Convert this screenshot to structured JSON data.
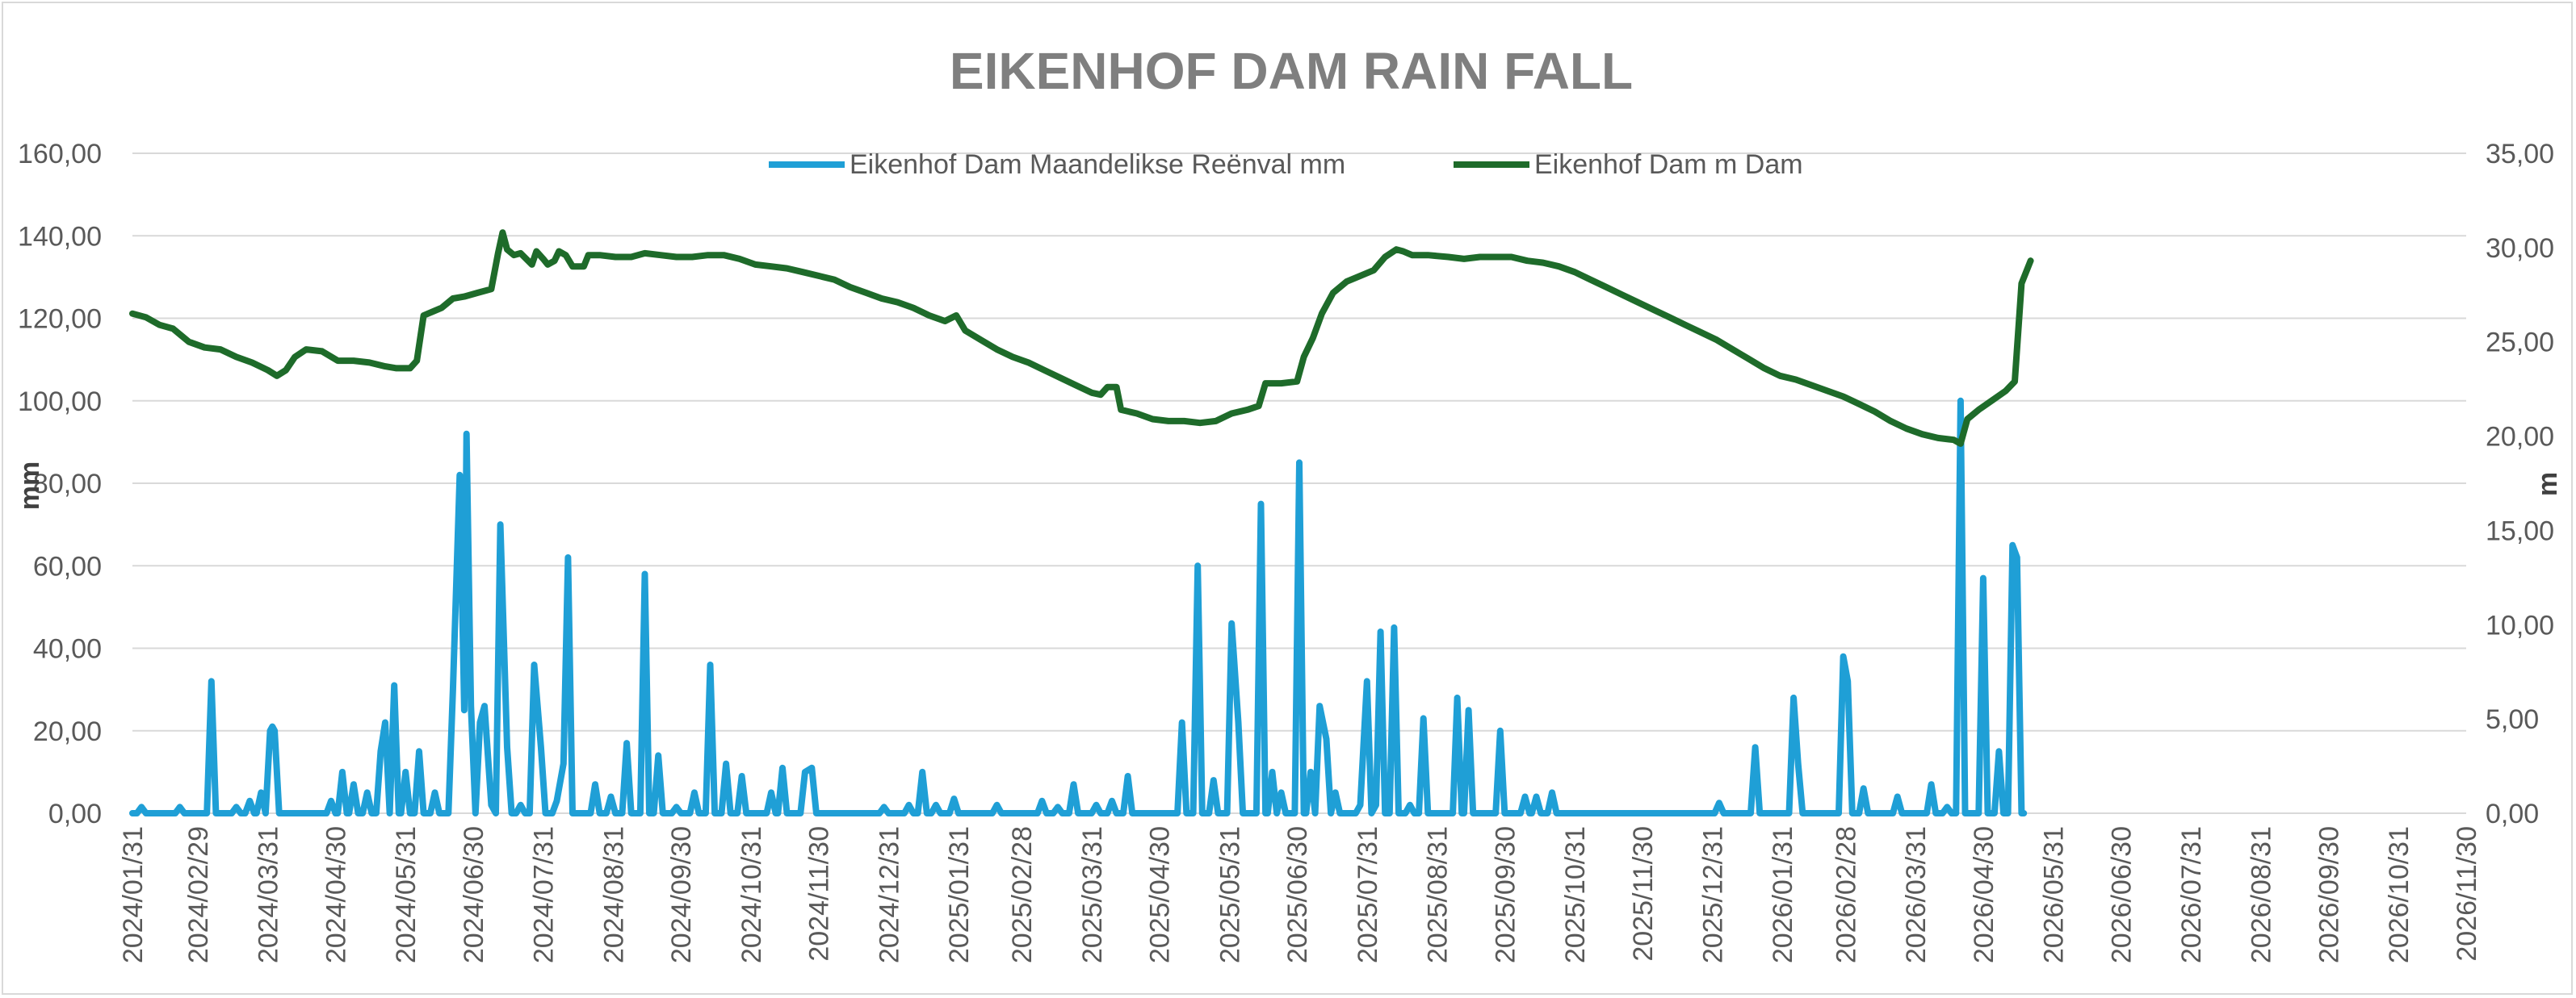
{
  "chart_data": {
    "type": "line",
    "title": "EIKENHOF DAM RAIN FALL",
    "ylabel_left": "mm",
    "ylabel_right": "m",
    "ylim_left": [
      0,
      160
    ],
    "ylim_right": [
      0,
      35
    ],
    "yticks_left": [
      "0,00",
      "20,00",
      "40,00",
      "60,00",
      "80,00",
      "100,00",
      "120,00",
      "140,00",
      "160,00"
    ],
    "yticks_right": [
      "0,00",
      "5,00",
      "10,00",
      "15,00",
      "20,00",
      "25,00",
      "30,00",
      "35,00"
    ],
    "xlim": [
      "2024-01-31",
      "2026-11-30"
    ],
    "xticks": [
      "2024/01/31",
      "2024/02/29",
      "2024/03/31",
      "2024/04/30",
      "2024/05/31",
      "2024/06/30",
      "2024/07/31",
      "2024/08/31",
      "2024/09/30",
      "2024/10/31",
      "2024/11/30",
      "2024/12/31",
      "2025/01/31",
      "2025/02/28",
      "2025/03/31",
      "2025/04/30",
      "2025/05/31",
      "2025/06/30",
      "2025/07/31",
      "2025/08/31",
      "2025/09/30",
      "2025/10/31",
      "2025/11/30",
      "2025/12/31",
      "2026/01/31",
      "2026/02/28",
      "2026/03/31",
      "2026/04/30",
      "2026/05/31",
      "2026/06/30",
      "2026/07/31",
      "2026/08/31",
      "2026/09/30",
      "2026/10/31",
      "2026/11/30"
    ],
    "grid": true,
    "legend_position": "top",
    "series": [
      {
        "name": "Eikenhof Dam Maandelikse Reënval mm",
        "axis": "left",
        "color": "#1f9fd6",
        "baseline": 0,
        "points": [
          [
            "2024-02-04",
            1.5
          ],
          [
            "2024-02-21",
            1.5
          ],
          [
            "2024-03-06",
            32
          ],
          [
            "2024-03-17",
            1.5
          ],
          [
            "2024-03-23",
            3
          ],
          [
            "2024-03-28",
            5
          ],
          [
            "2024-04-01",
            20
          ],
          [
            "2024-04-02",
            21
          ],
          [
            "2024-04-03",
            20
          ],
          [
            "2024-04-28",
            3
          ],
          [
            "2024-05-03",
            10
          ],
          [
            "2024-05-08",
            7
          ],
          [
            "2024-05-14",
            5
          ],
          [
            "2024-05-20",
            15
          ],
          [
            "2024-05-22",
            22
          ],
          [
            "2024-05-26",
            31
          ],
          [
            "2024-05-31",
            10
          ],
          [
            "2024-06-06",
            15
          ],
          [
            "2024-06-13",
            5
          ],
          [
            "2024-06-21",
            30
          ],
          [
            "2024-06-24",
            82
          ],
          [
            "2024-06-26",
            25
          ],
          [
            "2024-06-27",
            92
          ],
          [
            "2024-06-29",
            26
          ],
          [
            "2024-07-03",
            22
          ],
          [
            "2024-07-05",
            26
          ],
          [
            "2024-07-08",
            2
          ],
          [
            "2024-07-12",
            70
          ],
          [
            "2024-07-15",
            16
          ],
          [
            "2024-07-21",
            2
          ],
          [
            "2024-07-27",
            36
          ],
          [
            "2024-07-30",
            16
          ],
          [
            "2024-08-06",
            3
          ],
          [
            "2024-08-09",
            12
          ],
          [
            "2024-08-11",
            62
          ],
          [
            "2024-08-23",
            7
          ],
          [
            "2024-08-30",
            4
          ],
          [
            "2024-09-06",
            17
          ],
          [
            "2024-09-14",
            58
          ],
          [
            "2024-09-20",
            14
          ],
          [
            "2024-09-28",
            1.5
          ],
          [
            "2024-10-06",
            5
          ],
          [
            "2024-10-13",
            36
          ],
          [
            "2024-10-20",
            12
          ],
          [
            "2024-10-27",
            9
          ],
          [
            "2024-11-09",
            5
          ],
          [
            "2024-11-14",
            11
          ],
          [
            "2024-11-24",
            10
          ],
          [
            "2024-11-27",
            11
          ],
          [
            "2024-12-29",
            1.5
          ],
          [
            "2025-01-09",
            2
          ],
          [
            "2025-01-15",
            10
          ],
          [
            "2025-01-21",
            2
          ],
          [
            "2025-01-29",
            3.5
          ],
          [
            "2025-02-17",
            2
          ],
          [
            "2025-03-09",
            3
          ],
          [
            "2025-03-16",
            1.5
          ],
          [
            "2025-03-23",
            7
          ],
          [
            "2025-04-02",
            2
          ],
          [
            "2025-04-09",
            3
          ],
          [
            "2025-04-16",
            9
          ],
          [
            "2025-05-10",
            22
          ],
          [
            "2025-05-17",
            60
          ],
          [
            "2025-05-24",
            8
          ],
          [
            "2025-06-01",
            46
          ],
          [
            "2025-06-04",
            22
          ],
          [
            "2025-06-14",
            75
          ],
          [
            "2025-06-19",
            10
          ],
          [
            "2025-06-23",
            5
          ],
          [
            "2025-07-01",
            85
          ],
          [
            "2025-07-06",
            10
          ],
          [
            "2025-07-10",
            26
          ],
          [
            "2025-07-13",
            18
          ],
          [
            "2025-07-17",
            5
          ],
          [
            "2025-07-28",
            2
          ],
          [
            "2025-07-31",
            32
          ],
          [
            "2025-08-04",
            2
          ],
          [
            "2025-08-06",
            44
          ],
          [
            "2025-08-12",
            45
          ],
          [
            "2025-08-19",
            2
          ],
          [
            "2025-08-25",
            23
          ],
          [
            "2025-09-09",
            28
          ],
          [
            "2025-09-14",
            25
          ],
          [
            "2025-09-28",
            20
          ],
          [
            "2025-10-09",
            4
          ],
          [
            "2025-10-14",
            4
          ],
          [
            "2025-10-21",
            5
          ],
          [
            "2026-01-03",
            2.5
          ],
          [
            "2026-01-19",
            16
          ],
          [
            "2026-02-05",
            28
          ],
          [
            "2026-02-07",
            12
          ],
          [
            "2026-02-27",
            38
          ],
          [
            "2026-03-01",
            32
          ],
          [
            "2026-03-08",
            6
          ],
          [
            "2026-03-23",
            4
          ],
          [
            "2026-04-07",
            7
          ],
          [
            "2026-04-14",
            1.5
          ],
          [
            "2026-04-20",
            100
          ],
          [
            "2026-04-30",
            57
          ],
          [
            "2026-05-07",
            15
          ],
          [
            "2026-05-13",
            65
          ],
          [
            "2026-05-15",
            62
          ]
        ]
      },
      {
        "name": "Eikenhof Dam m Dam",
        "axis": "right",
        "color": "#1e6b2a",
        "points": [
          [
            "2024-01-31",
            26.5
          ],
          [
            "2024-02-06",
            26.3
          ],
          [
            "2024-02-12",
            25.9
          ],
          [
            "2024-02-18",
            25.7
          ],
          [
            "2024-02-25",
            25.0
          ],
          [
            "2024-03-03",
            24.7
          ],
          [
            "2024-03-10",
            24.6
          ],
          [
            "2024-03-17",
            24.2
          ],
          [
            "2024-03-24",
            23.9
          ],
          [
            "2024-03-31",
            23.5
          ],
          [
            "2024-04-04",
            23.2
          ],
          [
            "2024-04-08",
            23.5
          ],
          [
            "2024-04-12",
            24.2
          ],
          [
            "2024-04-17",
            24.6
          ],
          [
            "2024-04-24",
            24.5
          ],
          [
            "2024-05-01",
            24.0
          ],
          [
            "2024-05-08",
            24.0
          ],
          [
            "2024-05-15",
            23.9
          ],
          [
            "2024-05-22",
            23.7
          ],
          [
            "2024-05-27",
            23.6
          ],
          [
            "2024-06-02",
            23.6
          ],
          [
            "2024-06-05",
            24.0
          ],
          [
            "2024-06-08",
            26.4
          ],
          [
            "2024-06-12",
            26.6
          ],
          [
            "2024-06-16",
            26.8
          ],
          [
            "2024-06-21",
            27.3
          ],
          [
            "2024-06-26",
            27.4
          ],
          [
            "2024-07-02",
            27.6
          ],
          [
            "2024-07-08",
            27.8
          ],
          [
            "2024-07-11",
            29.7
          ],
          [
            "2024-07-13",
            30.8
          ],
          [
            "2024-07-15",
            29.9
          ],
          [
            "2024-07-18",
            29.6
          ],
          [
            "2024-07-21",
            29.7
          ],
          [
            "2024-07-26",
            29.1
          ],
          [
            "2024-07-28",
            29.8
          ],
          [
            "2024-07-31",
            29.4
          ],
          [
            "2024-08-02",
            29.1
          ],
          [
            "2024-08-05",
            29.3
          ],
          [
            "2024-08-07",
            29.8
          ],
          [
            "2024-08-10",
            29.6
          ],
          [
            "2024-08-13",
            29.0
          ],
          [
            "2024-08-18",
            29.0
          ],
          [
            "2024-08-20",
            29.6
          ],
          [
            "2024-08-25",
            29.6
          ],
          [
            "2024-09-01",
            29.5
          ],
          [
            "2024-09-08",
            29.5
          ],
          [
            "2024-09-14",
            29.7
          ],
          [
            "2024-09-21",
            29.6
          ],
          [
            "2024-09-28",
            29.5
          ],
          [
            "2024-10-05",
            29.5
          ],
          [
            "2024-10-12",
            29.6
          ],
          [
            "2024-10-19",
            29.6
          ],
          [
            "2024-10-26",
            29.4
          ],
          [
            "2024-11-02",
            29.1
          ],
          [
            "2024-11-09",
            29.0
          ],
          [
            "2024-11-16",
            28.9
          ],
          [
            "2024-11-23",
            28.7
          ],
          [
            "2024-11-30",
            28.5
          ],
          [
            "2024-12-07",
            28.3
          ],
          [
            "2024-12-14",
            27.9
          ],
          [
            "2024-12-21",
            27.6
          ],
          [
            "2024-12-28",
            27.3
          ],
          [
            "2025-01-04",
            27.1
          ],
          [
            "2025-01-11",
            26.8
          ],
          [
            "2025-01-18",
            26.4
          ],
          [
            "2025-01-25",
            26.1
          ],
          [
            "2025-01-30",
            26.4
          ],
          [
            "2025-02-03",
            25.6
          ],
          [
            "2025-02-10",
            25.1
          ],
          [
            "2025-02-17",
            24.6
          ],
          [
            "2025-02-24",
            24.2
          ],
          [
            "2025-03-03",
            23.9
          ],
          [
            "2025-03-10",
            23.5
          ],
          [
            "2025-03-17",
            23.1
          ],
          [
            "2025-03-24",
            22.7
          ],
          [
            "2025-03-31",
            22.3
          ],
          [
            "2025-04-04",
            22.2
          ],
          [
            "2025-04-07",
            22.6
          ],
          [
            "2025-04-11",
            22.6
          ],
          [
            "2025-04-13",
            21.4
          ],
          [
            "2025-04-20",
            21.2
          ],
          [
            "2025-04-27",
            20.9
          ],
          [
            "2025-05-04",
            20.8
          ],
          [
            "2025-05-11",
            20.8
          ],
          [
            "2025-05-18",
            20.7
          ],
          [
            "2025-05-25",
            20.8
          ],
          [
            "2025-06-01",
            21.2
          ],
          [
            "2025-06-08",
            21.4
          ],
          [
            "2025-06-13",
            21.6
          ],
          [
            "2025-06-16",
            22.8
          ],
          [
            "2025-06-23",
            22.8
          ],
          [
            "2025-06-30",
            22.9
          ],
          [
            "2025-07-03",
            24.2
          ],
          [
            "2025-07-07",
            25.2
          ],
          [
            "2025-07-11",
            26.5
          ],
          [
            "2025-07-16",
            27.6
          ],
          [
            "2025-07-22",
            28.2
          ],
          [
            "2025-07-28",
            28.5
          ],
          [
            "2025-08-03",
            28.8
          ],
          [
            "2025-08-08",
            29.5
          ],
          [
            "2025-08-13",
            29.9
          ],
          [
            "2025-08-16",
            29.8
          ],
          [
            "2025-08-20",
            29.6
          ],
          [
            "2025-08-27",
            29.6
          ],
          [
            "2025-09-05",
            29.5
          ],
          [
            "2025-09-12",
            29.4
          ],
          [
            "2025-09-19",
            29.5
          ],
          [
            "2025-09-26",
            29.5
          ],
          [
            "2025-10-03",
            29.5
          ],
          [
            "2025-10-10",
            29.3
          ],
          [
            "2025-10-17",
            29.2
          ],
          [
            "2025-10-24",
            29.0
          ],
          [
            "2025-10-31",
            28.7
          ],
          [
            "2025-11-07",
            28.3
          ],
          [
            "2025-11-14",
            27.9
          ],
          [
            "2025-11-21",
            27.5
          ],
          [
            "2025-11-28",
            27.1
          ],
          [
            "2025-12-05",
            26.7
          ],
          [
            "2025-12-12",
            26.3
          ],
          [
            "2025-12-19",
            25.9
          ],
          [
            "2025-12-26",
            25.5
          ],
          [
            "2026-01-02",
            25.1
          ],
          [
            "2026-01-09",
            24.6
          ],
          [
            "2026-01-16",
            24.1
          ],
          [
            "2026-01-23",
            23.6
          ],
          [
            "2026-01-30",
            23.2
          ],
          [
            "2026-02-06",
            23.0
          ],
          [
            "2026-02-13",
            22.7
          ],
          [
            "2026-02-20",
            22.4
          ],
          [
            "2026-02-27",
            22.1
          ],
          [
            "2026-03-06",
            21.7
          ],
          [
            "2026-03-13",
            21.3
          ],
          [
            "2026-03-20",
            20.8
          ],
          [
            "2026-03-27",
            20.4
          ],
          [
            "2026-04-03",
            20.1
          ],
          [
            "2026-04-10",
            19.9
          ],
          [
            "2026-04-17",
            19.8
          ],
          [
            "2026-04-20",
            19.6
          ],
          [
            "2026-04-23",
            20.9
          ],
          [
            "2026-04-28",
            21.4
          ],
          [
            "2026-05-04",
            21.9
          ],
          [
            "2026-05-10",
            22.4
          ],
          [
            "2026-05-14",
            22.9
          ],
          [
            "2026-05-17",
            28.1
          ],
          [
            "2026-05-21",
            29.3
          ]
        ]
      }
    ]
  },
  "colors": {
    "grid": "#d9d9d9",
    "axis_text": "#595959",
    "title": "#7f7f7f"
  }
}
